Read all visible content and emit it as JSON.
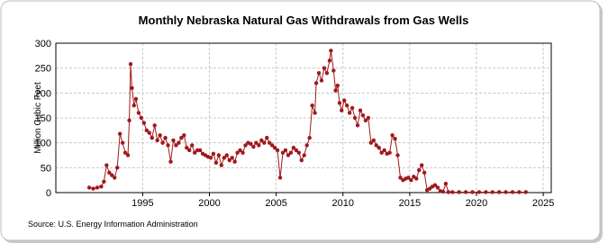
{
  "chart_data": {
    "type": "line",
    "title": "Monthly Nebraska Natural Gas Withdrawals from Gas Wells",
    "y_label": "Million Cubic Feet",
    "source": "Source: U.S. Energy Information Administration",
    "color": "#a0191b",
    "grid": true,
    "xlim": [
      1988.5,
      2025.6
    ],
    "xticks": [
      1995,
      2000,
      2005,
      2010,
      2015,
      2020,
      2025
    ],
    "ylim": [
      0,
      300
    ],
    "yticks": [
      0,
      50,
      100,
      150,
      200,
      250,
      300
    ],
    "x": [
      1991.0,
      1991.3,
      1991.6,
      1991.9,
      1992.1,
      1992.3,
      1992.5,
      1992.7,
      1992.9,
      1993.1,
      1993.3,
      1993.5,
      1993.7,
      1993.9,
      1994.0,
      1994.1,
      1994.2,
      1994.35,
      1994.5,
      1994.7,
      1994.9,
      1995.1,
      1995.3,
      1995.5,
      1995.7,
      1995.9,
      1996.1,
      1996.3,
      1996.5,
      1996.7,
      1996.9,
      1997.1,
      1997.3,
      1997.5,
      1997.7,
      1997.9,
      1998.1,
      1998.3,
      1998.5,
      1998.7,
      1998.9,
      1999.1,
      1999.3,
      1999.5,
      1999.7,
      1999.9,
      2000.1,
      2000.3,
      2000.5,
      2000.7,
      2000.9,
      2001.1,
      2001.3,
      2001.5,
      2001.7,
      2001.9,
      2002.1,
      2002.3,
      2002.5,
      2002.7,
      2002.9,
      2003.1,
      2003.3,
      2003.5,
      2003.7,
      2003.9,
      2004.1,
      2004.3,
      2004.5,
      2004.7,
      2004.9,
      2005.1,
      2005.3,
      2005.5,
      2005.7,
      2005.9,
      2006.1,
      2006.3,
      2006.5,
      2006.7,
      2006.9,
      2007.1,
      2007.3,
      2007.5,
      2007.7,
      2007.9,
      2008.0,
      2008.2,
      2008.4,
      2008.6,
      2008.8,
      2009.0,
      2009.1,
      2009.3,
      2009.45,
      2009.6,
      2009.75,
      2009.9,
      2010.1,
      2010.3,
      2010.5,
      2010.7,
      2010.9,
      2011.1,
      2011.3,
      2011.5,
      2011.7,
      2011.9,
      2012.1,
      2012.3,
      2012.5,
      2012.7,
      2012.9,
      2013.1,
      2013.3,
      2013.5,
      2013.7,
      2013.9,
      2014.1,
      2014.3,
      2014.5,
      2014.7,
      2014.9,
      2015.1,
      2015.3,
      2015.5,
      2015.7,
      2015.9,
      2016.1,
      2016.3,
      2016.5,
      2016.7,
      2016.9,
      2017.1,
      2017.3,
      2017.5,
      2017.7,
      2017.9,
      2018.2,
      2018.7,
      2019.2,
      2019.7,
      2020.2,
      2020.7,
      2021.2,
      2021.7,
      2022.2,
      2022.7,
      2023.2,
      2023.7
    ],
    "values": [
      10,
      8,
      10,
      12,
      22,
      55,
      40,
      35,
      30,
      50,
      118,
      100,
      80,
      75,
      145,
      258,
      210,
      175,
      188,
      160,
      150,
      140,
      125,
      120,
      110,
      135,
      105,
      115,
      100,
      110,
      95,
      62,
      105,
      95,
      100,
      110,
      115,
      90,
      85,
      95,
      80,
      85,
      85,
      78,
      75,
      72,
      70,
      78,
      60,
      75,
      55,
      70,
      75,
      65,
      70,
      62,
      80,
      85,
      80,
      95,
      100,
      98,
      92,
      100,
      95,
      105,
      100,
      110,
      100,
      95,
      90,
      85,
      30,
      80,
      85,
      75,
      80,
      90,
      85,
      80,
      65,
      75,
      95,
      110,
      175,
      160,
      220,
      240,
      225,
      250,
      240,
      265,
      285,
      245,
      205,
      215,
      180,
      165,
      185,
      175,
      160,
      170,
      150,
      135,
      165,
      155,
      145,
      150,
      100,
      105,
      95,
      90,
      80,
      85,
      78,
      80,
      115,
      108,
      75,
      30,
      25,
      28,
      30,
      25,
      32,
      28,
      45,
      55,
      40,
      5,
      8,
      12,
      15,
      10,
      3,
      2,
      18,
      1,
      1,
      1,
      1,
      1,
      1,
      1,
      1,
      1,
      1,
      1,
      1,
      1
    ]
  }
}
